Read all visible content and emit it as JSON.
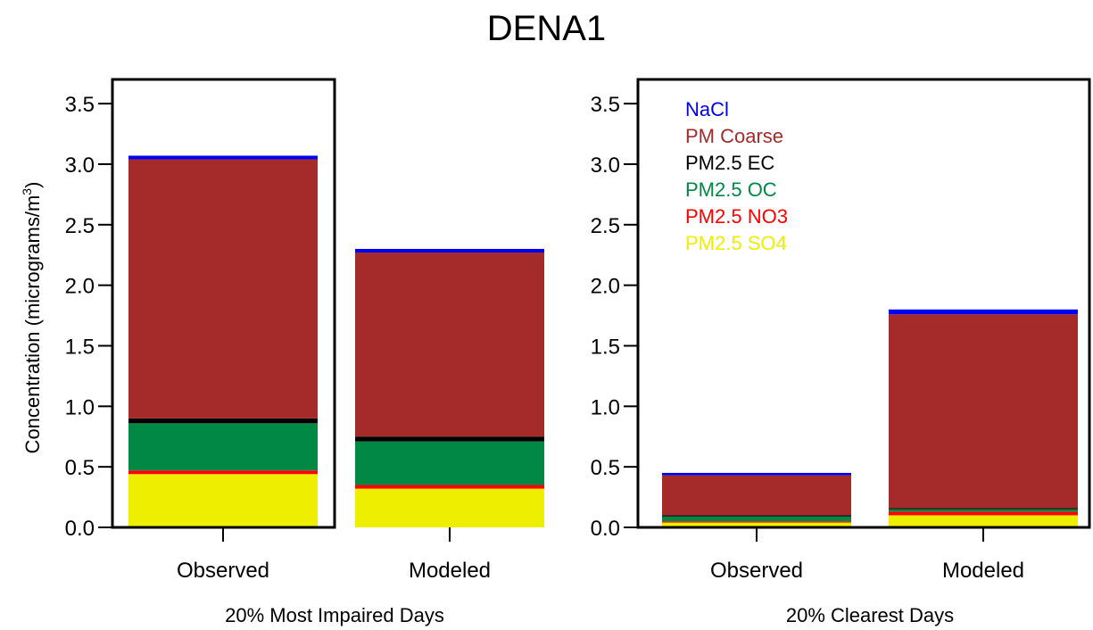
{
  "title": "DENA1",
  "chart_data": {
    "type": "bar",
    "stacked": true,
    "title": "DENA1",
    "ylabel": "Concentration  (micrograms/m",
    "ylabel_sup": "3",
    "ylabel_close": ")",
    "ylim": [
      0,
      3.7
    ],
    "yticks": [
      "0.0",
      "0.5",
      "1.0",
      "1.5",
      "2.0",
      "2.5",
      "3.0",
      "3.5"
    ],
    "legend_position": "top-left of right panel",
    "series": [
      {
        "name": "PM2.5 SO4",
        "color": "#eeee00"
      },
      {
        "name": "PM2.5 NO3",
        "color": "#ff0000"
      },
      {
        "name": "PM2.5 OC",
        "color": "#008844"
      },
      {
        "name": "PM2.5 EC",
        "color": "#000000"
      },
      {
        "name": "PM Coarse",
        "color": "#a52a2a"
      },
      {
        "name": "NaCl",
        "color": "#0000ee"
      }
    ],
    "legend_order": [
      "NaCl",
      "PM Coarse",
      "PM2.5 EC",
      "PM2.5 OC",
      "PM2.5 NO3",
      "PM2.5 SO4"
    ],
    "panels": [
      {
        "xlabel": "20% Most Impaired Days",
        "categories": [
          "Observed",
          "Modeled"
        ],
        "values": {
          "PM2.5 SO4": [
            0.44,
            0.32
          ],
          "PM2.5 NO3": [
            0.03,
            0.03
          ],
          "PM2.5 OC": [
            0.39,
            0.36
          ],
          "PM2.5 EC": [
            0.04,
            0.04
          ],
          "PM Coarse": [
            2.14,
            1.52
          ],
          "NaCl": [
            0.03,
            0.03
          ]
        }
      },
      {
        "xlabel": "20% Clearest Days",
        "categories": [
          "Observed",
          "Modeled"
        ],
        "values": {
          "PM2.5 SO4": [
            0.04,
            0.1
          ],
          "PM2.5 NO3": [
            0.01,
            0.03
          ],
          "PM2.5 OC": [
            0.04,
            0.02
          ],
          "PM2.5 EC": [
            0.01,
            0.01
          ],
          "PM Coarse": [
            0.33,
            1.6
          ],
          "NaCl": [
            0.02,
            0.04
          ]
        }
      }
    ]
  }
}
